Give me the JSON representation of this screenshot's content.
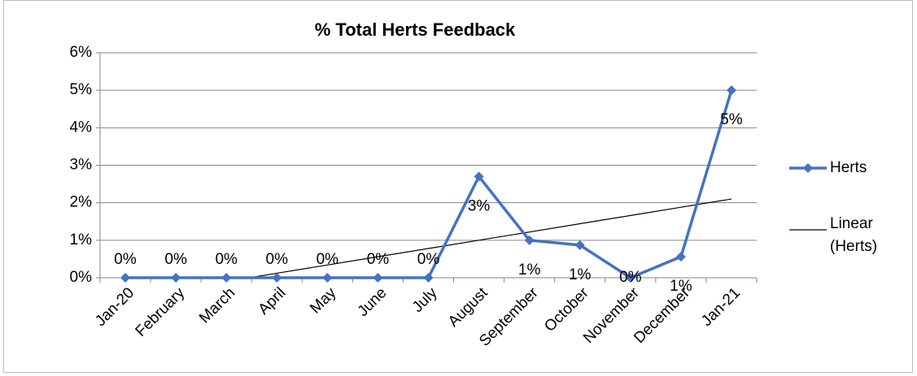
{
  "chart_data": {
    "type": "line",
    "title": "% Total Herts Feedback",
    "categories": [
      "Jan-20",
      "February",
      "March",
      "April",
      "May",
      "June",
      "July",
      "August",
      "September",
      "October",
      "November",
      "December",
      "Jan-21"
    ],
    "series": [
      {
        "name": "Herts",
        "color": "#4472c4",
        "values": [
          0,
          0,
          0,
          0,
          0,
          0,
          0,
          2.7,
          1.0,
          0.87,
          0,
          0.56,
          5.0
        ],
        "value_labels": [
          "0%",
          "0%",
          "0%",
          "0%",
          "0%",
          "0%",
          "0%",
          "3%",
          "1%",
          "1%",
          "0%",
          "1%",
          "5%"
        ]
      },
      {
        "name": "Linear\n(Herts)",
        "color": "#000000",
        "values": [
          -0.54,
          -0.32,
          -0.1,
          0.12,
          0.34,
          0.56,
          0.78,
          1.0,
          1.22,
          1.44,
          1.66,
          1.88,
          2.1
        ]
      }
    ],
    "ylim": [
      0,
      6
    ],
    "yticks": [
      {
        "value": 0,
        "label": "0%"
      },
      {
        "value": 1,
        "label": "1%"
      },
      {
        "value": 2,
        "label": "2%"
      },
      {
        "value": 3,
        "label": "3%"
      },
      {
        "value": 4,
        "label": "4%"
      },
      {
        "value": 5,
        "label": "5%"
      },
      {
        "value": 6,
        "label": "6%"
      }
    ],
    "grid": true,
    "legend": "right"
  }
}
